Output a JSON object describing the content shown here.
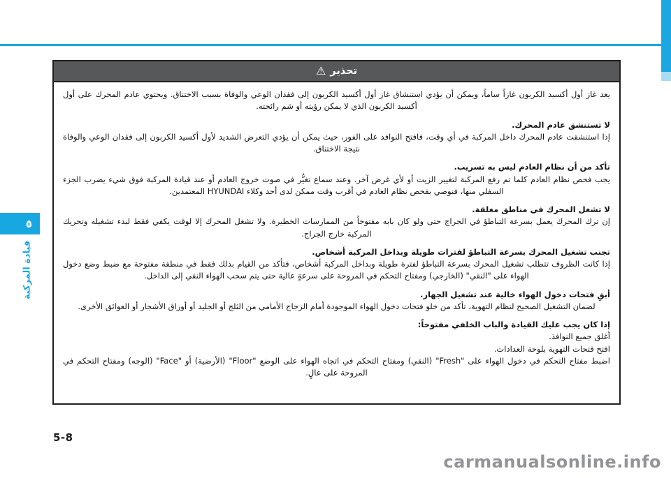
{
  "page": {
    "chapter_tab_digit": "٥",
    "side_label": "قيادة المركبة",
    "page_number": "5-8",
    "watermark": "carmanualsonline.info"
  },
  "colors": {
    "accent_blue": "#1BA7E1",
    "header_gray": "#57585A",
    "watermark_gray": "#929497"
  },
  "warning": {
    "icon": "⚠",
    "title": "تحذير",
    "intro": "يعد غاز أول أكسيد الكربون غازاً ساماً، ويمكن أن يؤدي استنشاق غاز أول أكسيد الكربون إلى فقدان الوعي والوفاة بسبب الاختناق. ويحتوي عادم المحرك على أول أكسيد الكربون الذي لا يمكن رؤيته أو شم رائحته.",
    "sections": [
      {
        "heading": "لا تستنشق عادم المحرك.",
        "body": "إذا استنشقت عادم المحرك داخل المركبة في أي وقت، فافتح النوافذ على الفور، حيث يمكن أن يؤدي التعرض الشديد لأول أكسيد الكربون إلى فقدان الوعي والوفاة نتيجة الاختناق."
      },
      {
        "heading": "تأكد من أن نظام العادم ليس به تسريب.",
        "body": "يجب فحص نظام العادم كلما تم رفع المركبة لتغيير الزيت أو لأي غرض آخر. وعند سماع تغيُّر في صوت خروج العادم أو عند قيادة المركبة فوق شيء يضرب الجزء السفلي منها، فنوصي بفحص نظام العادم في أقرب وقت ممكن لدى أحد وكلاء HYUNDAI المعتمدين."
      },
      {
        "heading": "لا تشغل المحرك في مناطق مغلقة.",
        "body": "إن ترك المحرك يعمل بسرعة التباطؤ في الجراج حتى ولو كان بابه مفتوحاً من الممارسات الخطيرة. ولا تشغل المحرك إلا لوقت يكفي فقط لبدء تشغيله وتحريك المركبة خارج الجراج."
      },
      {
        "heading": "تجنب تشغيل المحرك بسرعة التباطؤ لفترات طويلة وبداخل المركبة أشخاص.",
        "body": "إذا كانت الظروف تتطلب تشغيل المحرك بسرعة التباطؤ لفترة طويلة وبداخل المركبة أشخاص، فتأكد من القيام بذلك فقط في منطقة مفتوحة مع ضبط وضع دخول الهواء على \"النقي\" (الخارجي) ومفتاح التحكم في المروحة على سرعةٍ عالية حتى يتم سحب الهواء النقي إلى الداخل."
      },
      {
        "heading": "أبقِ فتحات دخول الهواء خالية عند تشغيل الجهاز.",
        "body": "لضمان التشغيل الصحيح لنظام التهوية، تأكد من خلو فتحات دخول الهواء الموجودة أمام الزجاج الأمامي من الثلج أو الجليد أو أوراق الأشجار أو العوائق الأخرى."
      }
    ],
    "drive_open_section": {
      "heading": "إذا كان يجب عليك القيادة والباب الخلفي مفتوحاً:",
      "items": [
        "أغلق جميع النوافذ.",
        "افتح فتحات التهوية بلوحة العدادات.",
        "اضبط مفتاح التحكم في دخول الهواء على \"Fresh\" (النقي) ومفتاح التحكم في اتجاه الهواء على الوضع \"Floor\" (الأرضية) أو \"Face\" (الوجه) ومفتاح التحكم في المروحة على عالٍ."
      ]
    }
  }
}
